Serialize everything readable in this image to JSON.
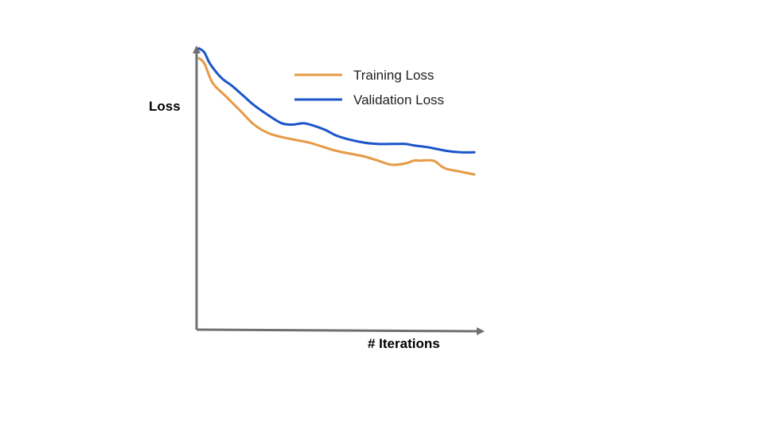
{
  "chart_data": {
    "type": "line",
    "title": "",
    "xlabel": "# Iterations",
    "ylabel": "Loss",
    "xlim": [
      0,
      100
    ],
    "ylim": [
      0,
      100
    ],
    "axis_tick_labels": false,
    "grid": false,
    "legend_position": "top-center",
    "series": [
      {
        "name": "Training Loss",
        "color": "#e69a45",
        "x": [
          0,
          2,
          5,
          10,
          15,
          20,
          25,
          30,
          35,
          40,
          45,
          50,
          55,
          60,
          65,
          70,
          75,
          78,
          80,
          85,
          88,
          90,
          95,
          100
        ],
        "y": [
          98,
          96,
          89,
          84,
          79,
          74,
          71,
          69.5,
          68.5,
          67.5,
          66,
          64.5,
          63.5,
          62.5,
          61,
          59.5,
          60,
          61,
          61,
          61,
          59,
          58,
          57,
          56
        ]
      },
      {
        "name": "Validation Loss",
        "color": "#1a55c9",
        "x": [
          0,
          2,
          4,
          8,
          12,
          16,
          20,
          25,
          30,
          34,
          38,
          42,
          46,
          50,
          55,
          60,
          65,
          70,
          75,
          78,
          82,
          85,
          90,
          95,
          100
        ],
        "y": [
          101.5,
          100,
          96,
          91,
          88,
          84.5,
          81,
          77.5,
          74.5,
          74,
          74.5,
          73.5,
          72,
          70,
          68.5,
          67.5,
          67,
          67,
          67,
          66.5,
          66,
          65.5,
          64.5,
          64,
          64
        ]
      }
    ]
  }
}
